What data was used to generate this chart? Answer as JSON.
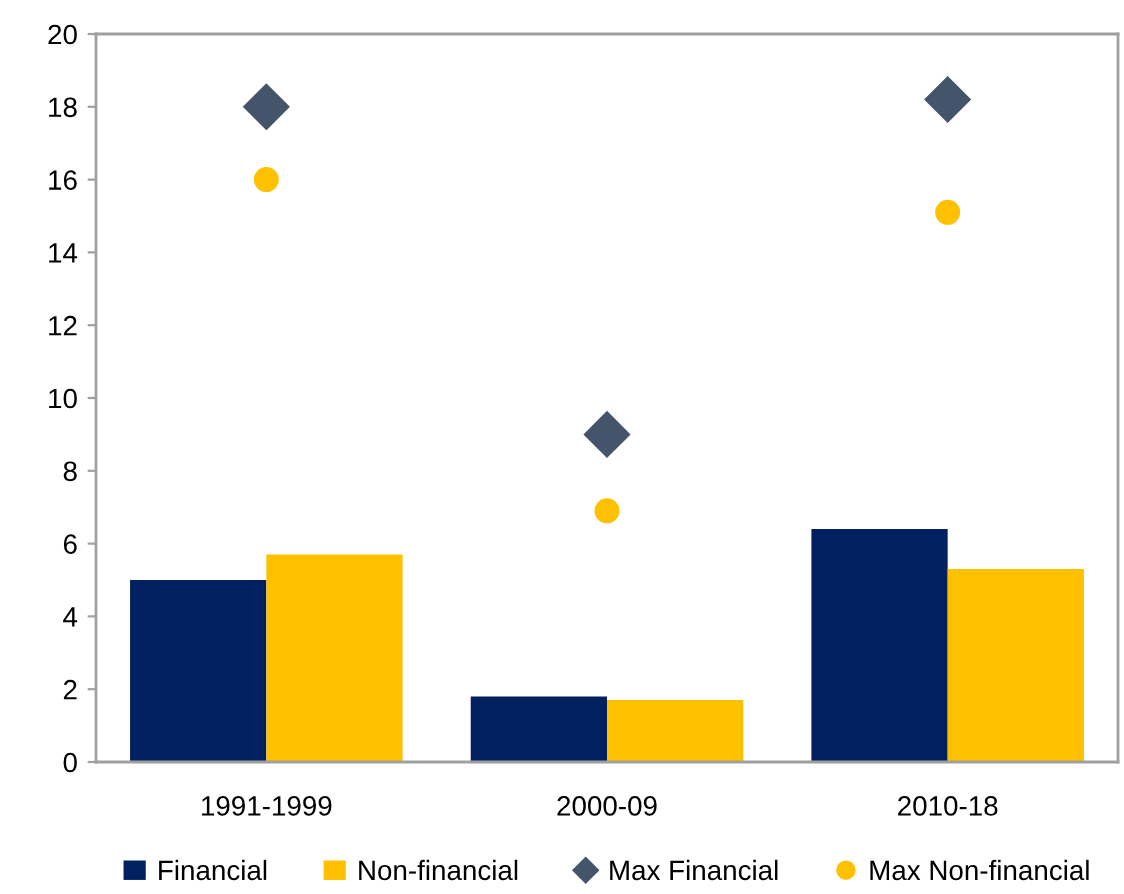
{
  "chart_data": {
    "type": "bar",
    "categories": [
      "1991-1999",
      "2000-09",
      "2010-18"
    ],
    "series": [
      {
        "name": "Financial",
        "color": "#002060",
        "values": [
          5.0,
          1.8,
          6.4
        ]
      },
      {
        "name": "Non-financial",
        "color": "#ffc000",
        "values": [
          5.7,
          1.7,
          5.3
        ]
      },
      {
        "name": "Max Financial",
        "type": "scatter",
        "marker": "diamond",
        "color": "#44546a",
        "values": [
          18.0,
          9.0,
          18.2
        ]
      },
      {
        "name": "Max Non-financial",
        "type": "scatter",
        "marker": "circle",
        "color": "#ffc000",
        "values": [
          16.0,
          6.9,
          15.1
        ]
      }
    ],
    "ylim": [
      0,
      20
    ],
    "yticks": [
      0,
      2,
      4,
      6,
      8,
      10,
      12,
      14,
      16,
      18,
      20
    ],
    "grid": false,
    "legend": "bottom"
  }
}
